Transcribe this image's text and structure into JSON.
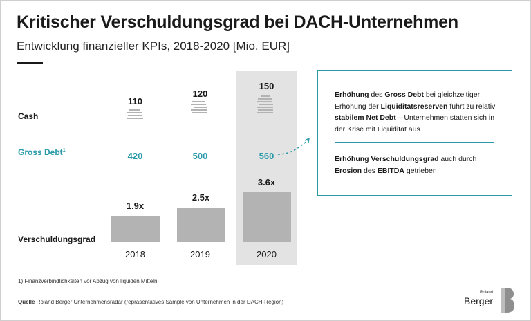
{
  "header": {
    "title": "Kritischer Verschuldungsgrad bei DACH-Unternehmen",
    "subtitle": "Entwicklung finanzieller KPIs, 2018-2020 [Mio. EUR]"
  },
  "rows": {
    "cash_label": "Cash",
    "gross_debt_label": "Gross Debt",
    "gross_debt_footnote_mark": "1",
    "leverage_label": "Verschuldungsgrad"
  },
  "chart_data": {
    "type": "bar",
    "categories": [
      "2018",
      "2019",
      "2020"
    ],
    "highlight_category": "2020",
    "series": [
      {
        "name": "Cash",
        "values": [
          110,
          120,
          150
        ]
      },
      {
        "name": "Gross Debt",
        "values": [
          420,
          500,
          560
        ]
      },
      {
        "name": "Verschuldungsgrad",
        "values": [
          1.9,
          2.5,
          3.6
        ],
        "value_labels": [
          "1.9x",
          "2.5x",
          "3.6x"
        ]
      }
    ],
    "colors": {
      "bar": "#b3b3b3",
      "accent": "#2a9aa8",
      "highlight_bg": "#e3e3e3"
    }
  },
  "callout": {
    "p1": [
      {
        "text": "Erhöhung",
        "bold": true
      },
      {
        "text": " des ",
        "bold": false
      },
      {
        "text": "Gross Debt",
        "bold": true
      },
      {
        "text": " bei gleichzeitiger Erhöhung der ",
        "bold": false
      },
      {
        "text": "Liquiditätsreserven",
        "bold": true
      },
      {
        "text": " führt zu relativ ",
        "bold": false
      },
      {
        "text": "stabilem Net Debt",
        "bold": true
      },
      {
        "text": " – Unternehmen statten sich in der Krise mit Liquidität aus",
        "bold": false
      }
    ],
    "p2": [
      {
        "text": "Erhöhung Verschuldungsgrad",
        "bold": true
      },
      {
        "text": " auch durch ",
        "bold": false
      },
      {
        "text": "Erosion",
        "bold": true
      },
      {
        "text": " des ",
        "bold": false
      },
      {
        "text": "EBITDA",
        "bold": true
      },
      {
        "text": " getrieben",
        "bold": false
      }
    ]
  },
  "footer": {
    "footnote": "1) Finanzverbindlichkeiten vor Abzug von liquiden Mitteln",
    "source_label": "Quelle",
    "source_text": " Roland Berger Unternehmensradar (repräsentatives Sample von Unternehmen in der DACH-Region)"
  },
  "logo": {
    "small": "Roland",
    "big": "Berger"
  }
}
